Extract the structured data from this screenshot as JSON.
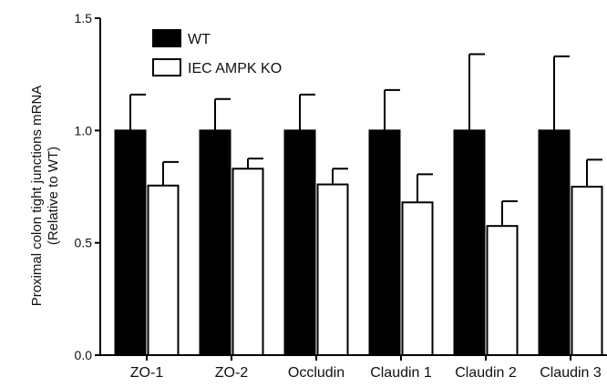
{
  "chart_data": {
    "type": "bar",
    "title": "",
    "xlabel": "",
    "ylabel": [
      "Proximal colon tight junctions  mRNA",
      "(Relative to WT)"
    ],
    "ylim": [
      0,
      1.5
    ],
    "yticks": [
      "0.0",
      "0.5",
      "1.0",
      "1.5"
    ],
    "categories": [
      "ZO-1",
      "ZO-2",
      "Occludin",
      "Claudin 1",
      "Claudin 2",
      "Claudin 3"
    ],
    "legend_position": "top-left",
    "grid": false,
    "error_bars": "upper",
    "series": [
      {
        "name": "WT",
        "color": "#000000",
        "fill": "solid",
        "values": [
          1.0,
          1.0,
          1.0,
          1.0,
          1.0,
          1.0
        ],
        "errors": [
          0.16,
          0.14,
          0.16,
          0.18,
          0.34,
          0.33
        ]
      },
      {
        "name": "IEC AMPK KO",
        "color": "#ffffff",
        "fill": "outline",
        "values": [
          0.755,
          0.83,
          0.76,
          0.68,
          0.575,
          0.75
        ],
        "errors": [
          0.105,
          0.045,
          0.07,
          0.125,
          0.11,
          0.12
        ]
      }
    ]
  }
}
